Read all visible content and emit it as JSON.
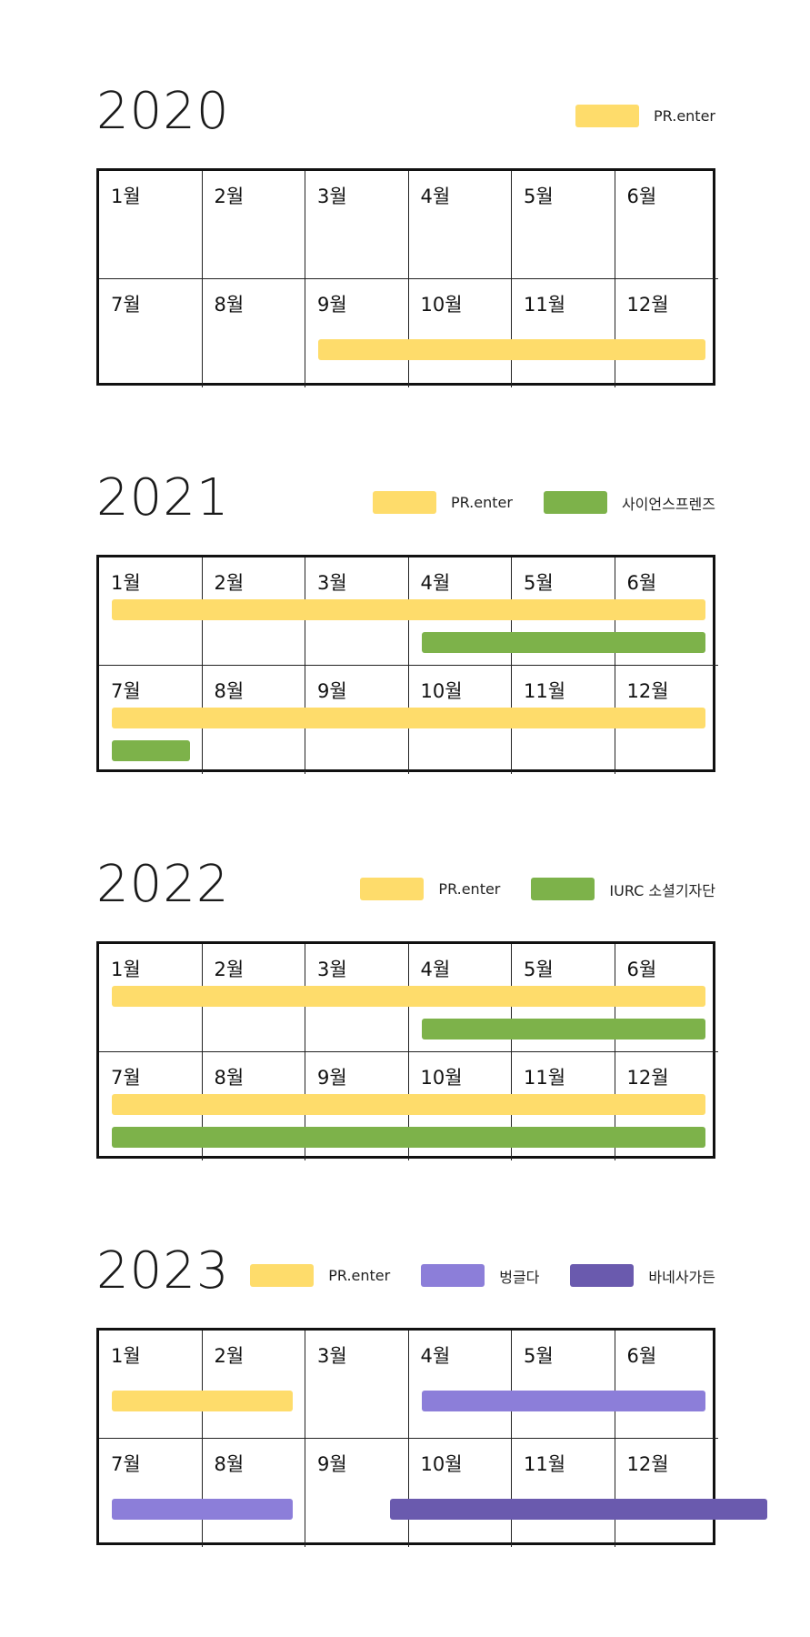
{
  "colors": {
    "pr_enter": "#FEDC6B",
    "green": "#7DB24A",
    "light_purple": "#8C7ED9",
    "dark_purple": "#6A5AAE"
  },
  "months": [
    "1월",
    "2월",
    "3월",
    "4월",
    "5월",
    "6월",
    "7월",
    "8월",
    "9월",
    "10월",
    "11월",
    "12월"
  ],
  "years": [
    {
      "year": "2020",
      "legend": [
        {
          "label": "PR.enter",
          "color": "#FEDC6B"
        }
      ],
      "bars": [
        {
          "row": 1,
          "start_month": 9,
          "end_month": 12,
          "color": "#FEDC6B"
        }
      ]
    },
    {
      "year": "2021",
      "legend": [
        {
          "label": "PR.enter",
          "color": "#FEDC6B"
        },
        {
          "label": "사이언스프렌즈",
          "color": "#7DB24A"
        }
      ],
      "bars": [
        {
          "row": 0,
          "start_month": 1,
          "end_month": 6,
          "lane": 0,
          "color": "#FEDC6B"
        },
        {
          "row": 0,
          "start_month": 4,
          "end_month": 6,
          "lane": 1,
          "color": "#7DB24A"
        },
        {
          "row": 1,
          "start_month": 7,
          "end_month": 12,
          "lane": 0,
          "color": "#FEDC6B"
        },
        {
          "row": 1,
          "start_month": 7,
          "end_month": 7,
          "lane": 1,
          "color": "#7DB24A"
        }
      ]
    },
    {
      "year": "2022",
      "legend": [
        {
          "label": "PR.enter",
          "color": "#FEDC6B"
        },
        {
          "label": "IURC 소셜기자단",
          "color": "#7DB24A"
        }
      ],
      "bars": [
        {
          "row": 0,
          "start_month": 1,
          "end_month": 6,
          "lane": 0,
          "color": "#FEDC6B"
        },
        {
          "row": 0,
          "start_month": 4,
          "end_month": 6,
          "lane": 1,
          "color": "#7DB24A"
        },
        {
          "row": 1,
          "start_month": 7,
          "end_month": 12,
          "lane": 0,
          "color": "#FEDC6B"
        },
        {
          "row": 1,
          "start_month": 7,
          "end_month": 12,
          "lane": 1,
          "color": "#7DB24A"
        }
      ]
    },
    {
      "year": "2023",
      "legend": [
        {
          "label": "PR.enter",
          "color": "#FEDC6B"
        },
        {
          "label": "벙글다",
          "color": "#8C7ED9"
        },
        {
          "label": "바네사가든",
          "color": "#6A5AAE"
        }
      ],
      "bars": [
        {
          "row": 0,
          "start_month": 1,
          "end_month": 2,
          "color": "#FEDC6B"
        },
        {
          "row": 0,
          "start_month": 4,
          "end_month": 6,
          "color": "#8C7ED9"
        },
        {
          "row": 1,
          "start_month": 7,
          "end_month": 8,
          "color": "#8C7ED9"
        },
        {
          "row": 1,
          "start_month": 9.7,
          "end_month": 12.6,
          "color": "#6A5AAE"
        }
      ]
    }
  ]
}
